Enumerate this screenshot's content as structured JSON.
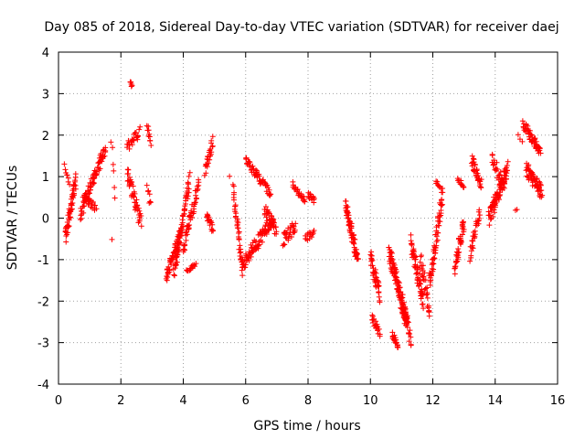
{
  "chart_data": {
    "type": "scatter",
    "title": "Day 085 of 2018, Sidereal Day-to-day VTEC variation (SDTVAR) for receiver daej",
    "xlabel": "GPS time / hours",
    "ylabel": "SDTVAR / TECUs",
    "xlim": [
      0,
      16
    ],
    "ylim": [
      -4,
      4
    ],
    "x_ticks": [
      "0",
      "2",
      "4",
      "6",
      "8",
      "10",
      "12",
      "14",
      "16"
    ],
    "y_ticks": [
      "-4",
      "-3",
      "-2",
      "-1",
      "0",
      "1",
      "2",
      "3",
      "4"
    ],
    "grid": true,
    "marker": "+",
    "series_color": "#ff0000",
    "segments": [
      {
        "x0": 0.22,
        "x1": 0.55,
        "y0": -0.45,
        "y1": 0.9,
        "spread": 0.35,
        "n": 55
      },
      {
        "x0": 0.2,
        "x1": 0.35,
        "y0": 1.3,
        "y1": 0.8,
        "spread": 0.15,
        "n": 8
      },
      {
        "x0": 0.7,
        "x1": 1.5,
        "y0": 0.1,
        "y1": 1.7,
        "spread": 0.3,
        "n": 80
      },
      {
        "x0": 0.8,
        "x1": 1.2,
        "y0": 0.6,
        "y1": 0.2,
        "spread": 0.25,
        "n": 25
      },
      {
        "x0": 1.7,
        "x1": 1.8,
        "y0": 1.9,
        "y1": 0.5,
        "spread": 0.2,
        "n": 6
      },
      {
        "x0": 1.72,
        "x1": 1.74,
        "y0": -0.55,
        "y1": -0.5,
        "spread": 0.05,
        "n": 1
      },
      {
        "x0": 2.3,
        "x1": 2.35,
        "y0": 3.3,
        "y1": 3.2,
        "spread": 0.06,
        "n": 6
      },
      {
        "x0": 2.2,
        "x1": 2.6,
        "y0": 1.7,
        "y1": 2.1,
        "spread": 0.25,
        "n": 25
      },
      {
        "x0": 2.2,
        "x1": 2.65,
        "y0": 1.1,
        "y1": -0.1,
        "spread": 0.4,
        "n": 45
      },
      {
        "x0": 2.85,
        "x1": 2.95,
        "y0": 2.2,
        "y1": 1.8,
        "spread": 0.15,
        "n": 10
      },
      {
        "x0": 2.85,
        "x1": 2.95,
        "y0": 0.8,
        "y1": 0.3,
        "spread": 0.2,
        "n": 8
      },
      {
        "x0": 3.45,
        "x1": 3.95,
        "y0": -1.4,
        "y1": -0.3,
        "spread": 0.35,
        "n": 55
      },
      {
        "x0": 3.7,
        "x1": 4.2,
        "y0": -1.4,
        "y1": 0.9,
        "spread": 0.4,
        "n": 70
      },
      {
        "x0": 4.0,
        "x1": 4.5,
        "y0": -0.7,
        "y1": 0.8,
        "spread": 0.35,
        "n": 50
      },
      {
        "x0": 4.1,
        "x1": 4.4,
        "y0": -1.3,
        "y1": -1.1,
        "spread": 0.1,
        "n": 15
      },
      {
        "x0": 4.7,
        "x1": 4.95,
        "y0": 1.1,
        "y1": 1.85,
        "spread": 0.25,
        "n": 25
      },
      {
        "x0": 4.75,
        "x1": 4.95,
        "y0": 0.1,
        "y1": -0.3,
        "spread": 0.2,
        "n": 20
      },
      {
        "x0": 5.45,
        "x1": 5.5,
        "y0": 1.0,
        "y1": 1.0,
        "spread": 0.05,
        "n": 1
      },
      {
        "x0": 5.6,
        "x1": 5.9,
        "y0": 0.7,
        "y1": -1.3,
        "spread": 0.3,
        "n": 40
      },
      {
        "x0": 5.9,
        "x1": 6.9,
        "y0": -1.1,
        "y1": 0.0,
        "spread": 0.35,
        "n": 90
      },
      {
        "x0": 6.0,
        "x1": 6.8,
        "y0": 1.4,
        "y1": 0.6,
        "spread": 0.2,
        "n": 55
      },
      {
        "x0": 6.6,
        "x1": 7.0,
        "y0": 0.2,
        "y1": -0.3,
        "spread": 0.3,
        "n": 30
      },
      {
        "x0": 7.2,
        "x1": 7.6,
        "y0": -0.5,
        "y1": -0.2,
        "spread": 0.35,
        "n": 30
      },
      {
        "x0": 7.5,
        "x1": 7.9,
        "y0": 0.8,
        "y1": 0.4,
        "spread": 0.15,
        "n": 25
      },
      {
        "x0": 8.0,
        "x1": 8.2,
        "y0": 0.6,
        "y1": 0.4,
        "spread": 0.15,
        "n": 15
      },
      {
        "x0": 7.9,
        "x1": 8.2,
        "y0": -0.5,
        "y1": -0.3,
        "spread": 0.2,
        "n": 15
      },
      {
        "x0": 9.2,
        "x1": 9.6,
        "y0": 0.3,
        "y1": -1.0,
        "spread": 0.35,
        "n": 70
      },
      {
        "x0": 10.0,
        "x1": 10.3,
        "y0": -0.9,
        "y1": -1.9,
        "spread": 0.4,
        "n": 40
      },
      {
        "x0": 10.05,
        "x1": 10.3,
        "y0": -2.4,
        "y1": -2.8,
        "spread": 0.2,
        "n": 20
      },
      {
        "x0": 10.6,
        "x1": 11.2,
        "y0": -0.8,
        "y1": -2.6,
        "spread": 0.45,
        "n": 110
      },
      {
        "x0": 10.7,
        "x1": 10.9,
        "y0": -2.8,
        "y1": -3.1,
        "spread": 0.15,
        "n": 20
      },
      {
        "x0": 11.0,
        "x1": 11.3,
        "y0": -1.9,
        "y1": -3.0,
        "spread": 0.3,
        "n": 25
      },
      {
        "x0": 11.3,
        "x1": 11.7,
        "y0": -0.6,
        "y1": -2.0,
        "spread": 0.45,
        "n": 60
      },
      {
        "x0": 11.6,
        "x1": 11.9,
        "y0": -1.0,
        "y1": -2.2,
        "spread": 0.4,
        "n": 30
      },
      {
        "x0": 11.9,
        "x1": 12.3,
        "y0": -1.6,
        "y1": 0.5,
        "spread": 0.45,
        "n": 60
      },
      {
        "x0": 12.1,
        "x1": 12.3,
        "y0": 0.9,
        "y1": 0.6,
        "spread": 0.15,
        "n": 10
      },
      {
        "x0": 12.7,
        "x1": 13.0,
        "y0": -1.2,
        "y1": -0.1,
        "spread": 0.4,
        "n": 40
      },
      {
        "x0": 12.8,
        "x1": 13.0,
        "y0": 0.95,
        "y1": 0.7,
        "spread": 0.15,
        "n": 12
      },
      {
        "x0": 13.2,
        "x1": 13.5,
        "y0": -0.9,
        "y1": 0.2,
        "spread": 0.35,
        "n": 30
      },
      {
        "x0": 13.25,
        "x1": 13.55,
        "y0": 1.4,
        "y1": 0.8,
        "spread": 0.3,
        "n": 35
      },
      {
        "x0": 13.8,
        "x1": 14.4,
        "y0": 0.0,
        "y1": 1.2,
        "spread": 0.4,
        "n": 90
      },
      {
        "x0": 13.9,
        "x1": 14.3,
        "y0": 1.5,
        "y1": 0.7,
        "spread": 0.35,
        "n": 30
      },
      {
        "x0": 14.9,
        "x1": 15.45,
        "y0": 2.25,
        "y1": 1.6,
        "spread": 0.25,
        "n": 55
      },
      {
        "x0": 15.0,
        "x1": 15.5,
        "y0": 1.2,
        "y1": 0.6,
        "spread": 0.35,
        "n": 60
      },
      {
        "x0": 14.65,
        "x1": 14.7,
        "y0": 0.2,
        "y1": 0.2,
        "spread": 0.05,
        "n": 2
      },
      {
        "x0": 14.75,
        "x1": 14.85,
        "y0": 2.0,
        "y1": 1.8,
        "spread": 0.1,
        "n": 3
      }
    ]
  }
}
